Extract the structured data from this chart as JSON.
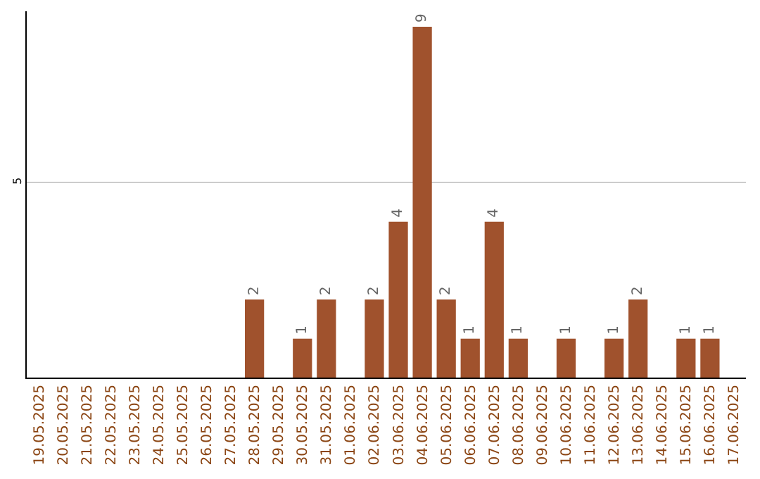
{
  "chart_data": {
    "type": "bar",
    "categories": [
      "19.05.2025",
      "20.05.2025",
      "21.05.2025",
      "22.05.2025",
      "23.05.2025",
      "24.05.2025",
      "25.05.2025",
      "26.05.2025",
      "27.05.2025",
      "28.05.2025",
      "29.05.2025",
      "30.05.2025",
      "31.05.2025",
      "01.06.2025",
      "02.06.2025",
      "03.06.2025",
      "04.06.2025",
      "05.06.2025",
      "06.06.2025",
      "07.06.2025",
      "08.06.2025",
      "09.06.2025",
      "10.06.2025",
      "11.06.2025",
      "12.06.2025",
      "13.06.2025",
      "14.06.2025",
      "15.06.2025",
      "16.06.2025",
      "17.06.2025"
    ],
    "values": [
      0,
      0,
      0,
      0,
      0,
      0,
      0,
      0,
      0,
      2,
      0,
      1,
      2,
      0,
      2,
      4,
      9,
      2,
      1,
      4,
      1,
      0,
      1,
      0,
      1,
      2,
      0,
      1,
      1,
      0
    ],
    "value_labels": [
      null,
      null,
      null,
      null,
      null,
      null,
      null,
      null,
      null,
      "2",
      null,
      "1",
      "2",
      null,
      "2",
      "4",
      "9",
      "2",
      "1",
      "4",
      "1",
      null,
      "1",
      null,
      "1",
      "2",
      null,
      "1",
      "1",
      null
    ],
    "color": "#a0522d",
    "ylim": [
      0,
      9.4
    ],
    "yticks": [
      {
        "value": 0,
        "label": null
      },
      5
    ],
    "grid": "y"
  }
}
